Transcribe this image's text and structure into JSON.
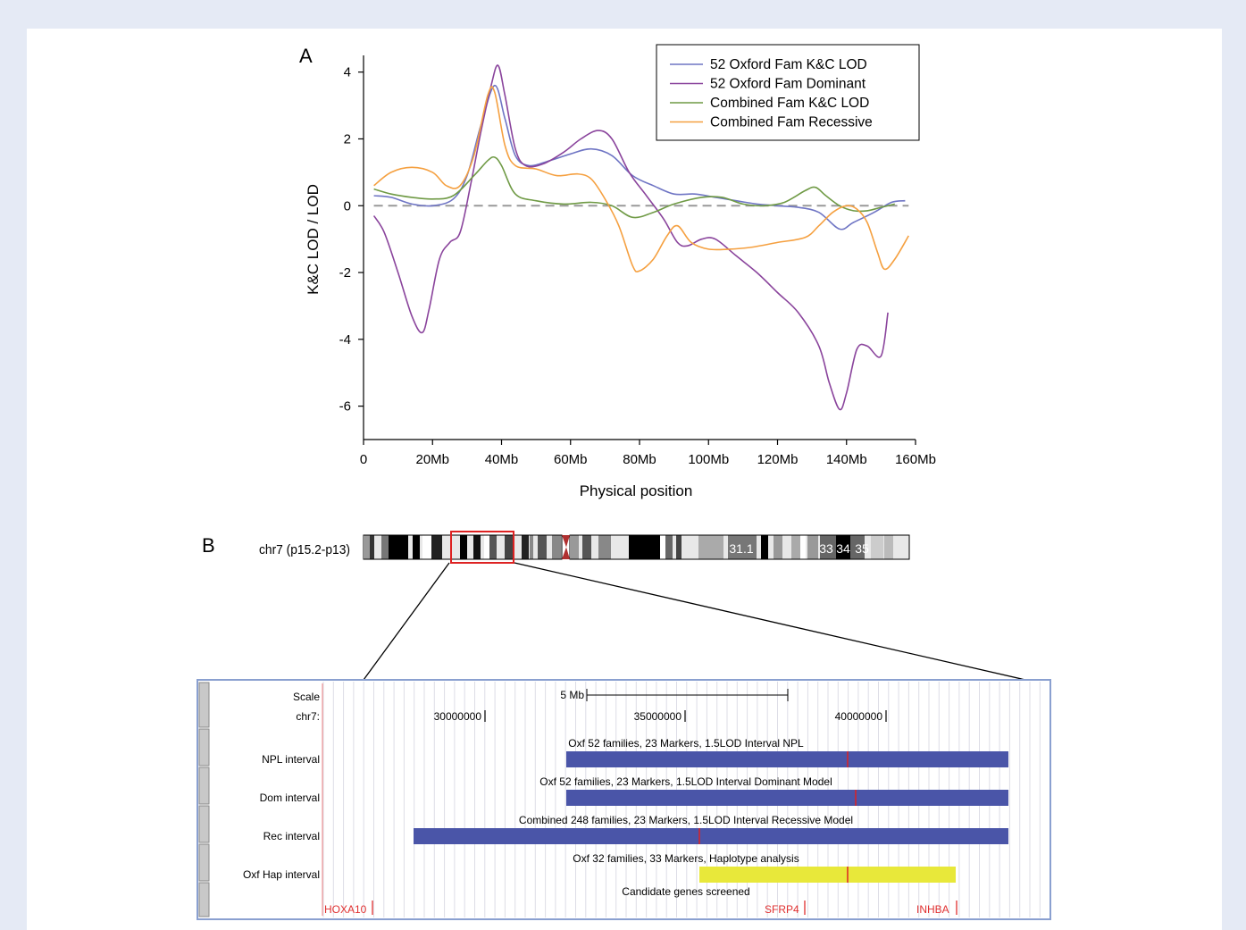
{
  "panel_a": {
    "label": "A",
    "chart_data": {
      "type": "line",
      "xlabel": "Physical position",
      "ylabel": "K&C LOD / LOD",
      "xlim": [
        0,
        160
      ],
      "ylim": [
        -7,
        4.5
      ],
      "x_ticks": [
        0,
        20,
        40,
        60,
        80,
        100,
        120,
        140,
        160
      ],
      "x_tick_labels": [
        "0",
        "20Mb",
        "40Mb",
        "60Mb",
        "80Mb",
        "100Mb",
        "120Mb",
        "140Mb",
        "160Mb"
      ],
      "y_ticks": [
        4,
        2,
        0,
        -2,
        -4,
        -6
      ],
      "y_tick_labels": [
        "4",
        "2",
        "0",
        "-2",
        "-4",
        "-6"
      ],
      "reference_line": {
        "y": 0,
        "style": "dashed",
        "color": "#999999"
      },
      "legend_position": "top-right",
      "series": [
        {
          "name": "52 Oxford Fam K&C LOD",
          "color": "#6f75c4",
          "points": [
            [
              3,
              0.3
            ],
            [
              8,
              0.25
            ],
            [
              14,
              0.05
            ],
            [
              20,
              0.0
            ],
            [
              26,
              0.2
            ],
            [
              30,
              0.9
            ],
            [
              34,
              2.4
            ],
            [
              38,
              3.6
            ],
            [
              41,
              2.6
            ],
            [
              44,
              1.5
            ],
            [
              48,
              1.2
            ],
            [
              54,
              1.35
            ],
            [
              60,
              1.55
            ],
            [
              66,
              1.7
            ],
            [
              72,
              1.5
            ],
            [
              78,
              0.9
            ],
            [
              84,
              0.6
            ],
            [
              90,
              0.35
            ],
            [
              96,
              0.35
            ],
            [
              102,
              0.25
            ],
            [
              108,
              0.15
            ],
            [
              114,
              0.05
            ],
            [
              120,
              0.0
            ],
            [
              126,
              -0.05
            ],
            [
              132,
              -0.2
            ],
            [
              138,
              -0.7
            ],
            [
              142,
              -0.5
            ],
            [
              148,
              -0.2
            ],
            [
              153,
              0.1
            ],
            [
              157,
              0.15
            ]
          ]
        },
        {
          "name": "52 Oxford Fam Dominant",
          "color": "#8a449c",
          "points": [
            [
              3,
              -0.3
            ],
            [
              6,
              -0.8
            ],
            [
              10,
              -2.0
            ],
            [
              14,
              -3.3
            ],
            [
              17,
              -3.8
            ],
            [
              19,
              -3.1
            ],
            [
              22,
              -1.6
            ],
            [
              25,
              -1.1
            ],
            [
              28,
              -0.8
            ],
            [
              31,
              0.6
            ],
            [
              34,
              2.2
            ],
            [
              37,
              3.6
            ],
            [
              39,
              4.2
            ],
            [
              41,
              3.3
            ],
            [
              44,
              1.7
            ],
            [
              47,
              1.2
            ],
            [
              52,
              1.25
            ],
            [
              58,
              1.6
            ],
            [
              63,
              2.0
            ],
            [
              68,
              2.25
            ],
            [
              72,
              2.0
            ],
            [
              77,
              1.0
            ],
            [
              82,
              0.3
            ],
            [
              87,
              -0.4
            ],
            [
              91,
              -1.1
            ],
            [
              94,
              -1.2
            ],
            [
              98,
              -1.0
            ],
            [
              102,
              -1.0
            ],
            [
              108,
              -1.5
            ],
            [
              114,
              -2.0
            ],
            [
              120,
              -2.6
            ],
            [
              126,
              -3.2
            ],
            [
              132,
              -4.2
            ],
            [
              135,
              -5.3
            ],
            [
              138,
              -6.1
            ],
            [
              140,
              -5.6
            ],
            [
              143,
              -4.3
            ],
            [
              146,
              -4.2
            ],
            [
              150,
              -4.5
            ],
            [
              152,
              -3.2
            ]
          ]
        },
        {
          "name": "Combined Fam K&C LOD",
          "color": "#6f9a45",
          "points": [
            [
              3,
              0.5
            ],
            [
              8,
              0.35
            ],
            [
              14,
              0.25
            ],
            [
              20,
              0.2
            ],
            [
              26,
              0.3
            ],
            [
              32,
              0.9
            ],
            [
              36,
              1.35
            ],
            [
              38,
              1.45
            ],
            [
              40,
              1.2
            ],
            [
              44,
              0.35
            ],
            [
              50,
              0.15
            ],
            [
              58,
              0.05
            ],
            [
              66,
              0.1
            ],
            [
              72,
              0.0
            ],
            [
              78,
              -0.35
            ],
            [
              84,
              -0.2
            ],
            [
              90,
              0.05
            ],
            [
              98,
              0.25
            ],
            [
              104,
              0.25
            ],
            [
              110,
              0.05
            ],
            [
              116,
              0.0
            ],
            [
              122,
              0.1
            ],
            [
              128,
              0.45
            ],
            [
              131,
              0.55
            ],
            [
              134,
              0.3
            ],
            [
              138,
              0.0
            ],
            [
              142,
              -0.15
            ],
            [
              146,
              -0.15
            ],
            [
              150,
              -0.05
            ],
            [
              154,
              0.05
            ]
          ]
        },
        {
          "name": "Combined Fam Recessive",
          "color": "#f5a040",
          "points": [
            [
              3,
              0.6
            ],
            [
              8,
              1.0
            ],
            [
              14,
              1.15
            ],
            [
              20,
              1.0
            ],
            [
              24,
              0.6
            ],
            [
              28,
              0.6
            ],
            [
              32,
              1.5
            ],
            [
              36,
              3.3
            ],
            [
              38,
              3.4
            ],
            [
              41,
              1.8
            ],
            [
              44,
              1.2
            ],
            [
              50,
              1.1
            ],
            [
              56,
              0.9
            ],
            [
              62,
              0.95
            ],
            [
              66,
              0.8
            ],
            [
              70,
              0.2
            ],
            [
              74,
              -0.6
            ],
            [
              78,
              -1.8
            ],
            [
              80,
              -1.95
            ],
            [
              84,
              -1.6
            ],
            [
              88,
              -0.9
            ],
            [
              91,
              -0.6
            ],
            [
              95,
              -1.1
            ],
            [
              100,
              -1.3
            ],
            [
              106,
              -1.3
            ],
            [
              112,
              -1.25
            ],
            [
              120,
              -1.1
            ],
            [
              128,
              -0.95
            ],
            [
              132,
              -0.6
            ],
            [
              136,
              -0.2
            ],
            [
              140,
              0.0
            ],
            [
              143,
              -0.1
            ],
            [
              146,
              -0.5
            ],
            [
              149,
              -1.4
            ],
            [
              151,
              -1.9
            ],
            [
              154,
              -1.6
            ],
            [
              158,
              -0.9
            ]
          ]
        }
      ]
    }
  },
  "panel_b": {
    "label": "B",
    "chromosome_label": "chr7 (p15.2-p13)",
    "band_labels": [
      "31.1",
      "33",
      "34",
      "35"
    ],
    "browser": {
      "scale_label": "Scale",
      "chr_label": "chr7:",
      "scale_bar_text": "5 Mb",
      "coordinate_ticks": [
        "30000000",
        "35000000",
        "40000000"
      ],
      "tracks": [
        {
          "label": "NPL interval",
          "title": "Oxf 52 families, 23 Markers, 1.5LOD Interval NPL",
          "color": "#4a55a8"
        },
        {
          "label": "Dom interval",
          "title": "Oxf 52 families, 23 Markers, 1.5LOD Interval Dominant Model",
          "color": "#4a55a8"
        },
        {
          "label": "Rec interval",
          "title": "Combined 248 families, 23 Markers, 1.5LOD Interval Recessive Model",
          "color": "#4a55a8"
        },
        {
          "label": "Oxf Hap interval",
          "title": "Oxf 32 families, 33 Markers, Haplotype analysis",
          "color": "#e8e83a"
        }
      ],
      "candidate_title": "Candidate genes screened",
      "genes": [
        "HOXA10",
        "SFRP4",
        "INHBA"
      ]
    }
  }
}
